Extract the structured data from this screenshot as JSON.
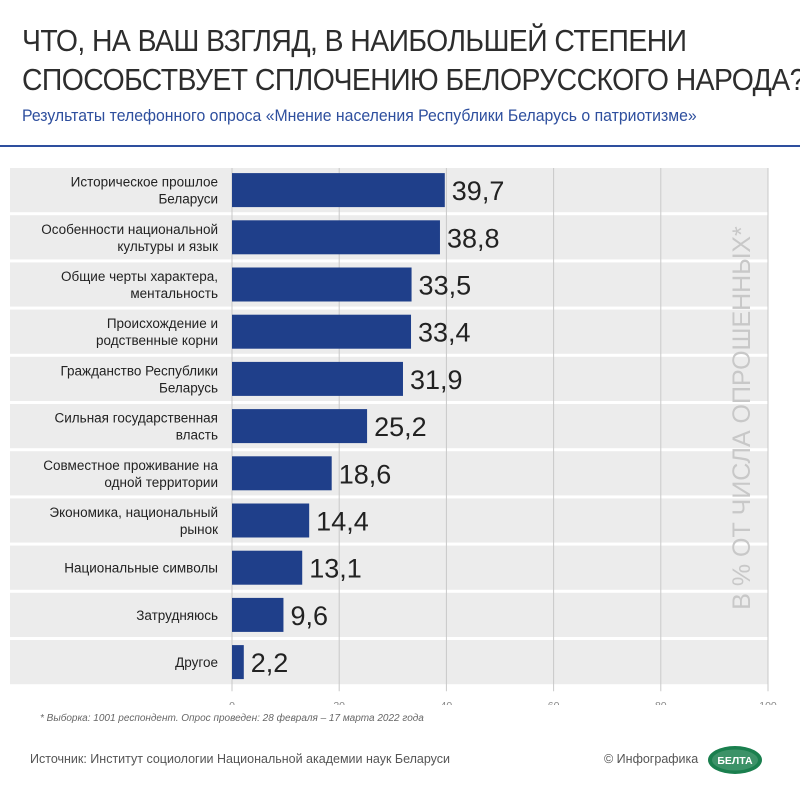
{
  "header": {
    "title_line1": "ЧТО, НА ВАШ ВЗГЛЯД, В НАИБОЛЬШЕЙ СТЕПЕНИ",
    "title_line2": "СПОСОБСТВУЕТ СПЛОЧЕНИЮ БЕЛОРУССКОГО НАРОДА?",
    "subtitle": "Результаты телефонного опроса «Мнение населения Республики Беларусь о патриотизме»"
  },
  "chart_data": {
    "type": "bar",
    "orientation": "horizontal",
    "categories": [
      [
        "Историческое прошлое",
        "Беларуси"
      ],
      [
        "Особенности национальной",
        "культуры и язык"
      ],
      [
        "Общие черты характера,",
        "ментальность"
      ],
      [
        "Происхождение и",
        "родственные корни"
      ],
      [
        "Гражданство Республики",
        "Беларусь"
      ],
      [
        "Сильная государственная",
        "власть"
      ],
      [
        "Совместное проживание на",
        "одной территории"
      ],
      [
        "Экономика, национальный",
        "рынок"
      ],
      [
        "Национальные символы"
      ],
      [
        "Затрудняюсь"
      ],
      [
        "Другое"
      ]
    ],
    "values": [
      39.7,
      38.8,
      33.5,
      33.4,
      31.9,
      25.2,
      18.6,
      14.4,
      13.1,
      9.6,
      2.2
    ],
    "value_labels": [
      "39,7",
      "38,8",
      "33,5",
      "33,4",
      "31,9",
      "25,2",
      "18,6",
      "14,4",
      "13,1",
      "9,6",
      "2,2"
    ],
    "xlim": [
      0,
      100
    ],
    "xticks": [
      "0",
      "20",
      "40",
      "60",
      "80",
      "100"
    ],
    "axis_label": "В % ОТ ЧИСЛА ОПРОШЕННЫХ*",
    "grid": true,
    "bar_color": "#1f3f8a",
    "row_shade_color": "#ececec"
  },
  "footer": {
    "footnote": "* Выборка: 1001 респондент. Опрос проведен: 28 февраля – 17 марта 2022 года",
    "source": "Источник: Институт социологии Национальной академии наук Беларуси",
    "credit": "© Инфографика",
    "logo_text": "БЕЛТА"
  }
}
